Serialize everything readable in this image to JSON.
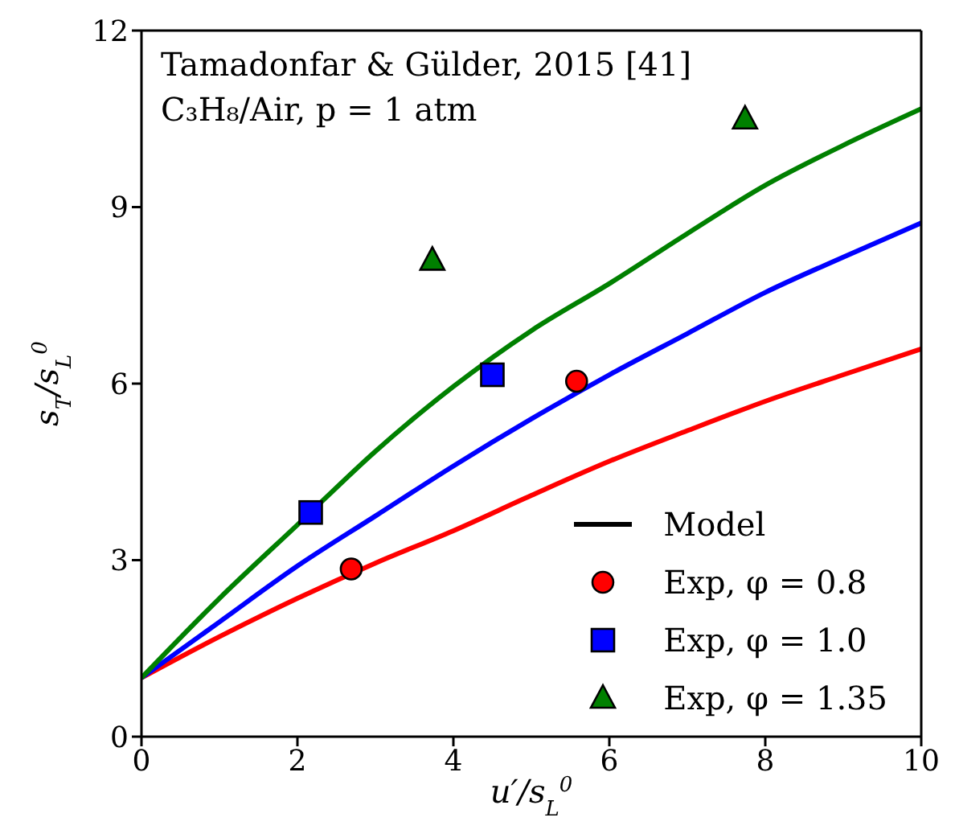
{
  "chart_data": {
    "type": "line",
    "xlabel": "u′/s$_{L}$$^{0}$",
    "ylabel": "s$_{T}$/s$_{L}$$^{0}$",
    "annotations": [
      "Tamadonfar & Gülder, 2015 [41]",
      "C₃H₈/Air, p = 1 atm"
    ],
    "xlim": [
      0,
      10
    ],
    "xticks": [
      0,
      2,
      4,
      6,
      8,
      10
    ],
    "ylim": [
      0,
      12
    ],
    "yticks": [
      0,
      3,
      6,
      9,
      12
    ],
    "grid": false,
    "legend": "bottom right",
    "series": [
      {
        "name": "Model",
        "color": "#000000"
      },
      {
        "color": "#ff0000",
        "marker": "none",
        "x": [
          0,
          1,
          2,
          3,
          4,
          5,
          6,
          7,
          8,
          9,
          10
        ],
        "values": [
          1,
          1.7,
          2.35,
          2.95,
          3.5,
          4.1,
          4.68,
          5.2,
          5.7,
          6.15,
          6.59
        ]
      },
      {
        "color": "#0000ff",
        "marker": "none",
        "x": [
          0,
          1,
          2,
          3,
          4,
          5,
          6,
          7,
          8,
          9,
          10
        ],
        "values": [
          1,
          1.95,
          2.9,
          3.75,
          4.6,
          5.4,
          6.15,
          6.85,
          7.55,
          8.15,
          8.73
        ]
      },
      {
        "color": "#008000",
        "marker": "none",
        "x": [
          0,
          1,
          2,
          3,
          4,
          5,
          6,
          7,
          8,
          9,
          10
        ],
        "values": [
          1,
          2.35,
          3.6,
          4.85,
          5.95,
          6.9,
          7.7,
          8.55,
          9.37,
          10.05,
          10.67
        ]
      },
      {
        "type": "scatter",
        "name": "Exp, φ = 0.8",
        "color": "#ff0000",
        "marker": "circle",
        "x": [
          2.69,
          5.58
        ],
        "values": [
          2.85,
          6.04
        ]
      },
      {
        "type": "scatter",
        "name": "Exp, φ = 1.0",
        "color": "#0000ff",
        "marker": "square",
        "x": [
          2.17,
          4.5
        ],
        "values": [
          3.81,
          6.15
        ]
      },
      {
        "type": "scatter",
        "name": "Exp, φ = 1.35",
        "color": "#008000",
        "marker": "triangle",
        "x": [
          3.73,
          7.74
        ],
        "values": [
          8.1,
          10.5
        ]
      }
    ]
  }
}
